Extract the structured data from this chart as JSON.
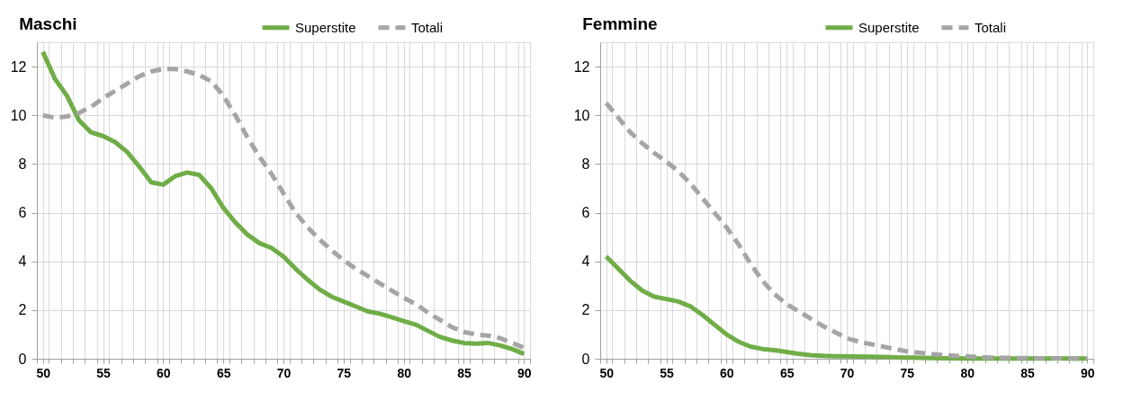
{
  "chart_data": [
    {
      "type": "line",
      "title": "Maschi",
      "legend": "top right",
      "grid": true,
      "x": [
        50,
        51,
        52,
        53,
        54,
        55,
        56,
        57,
        58,
        59,
        60,
        61,
        62,
        63,
        64,
        65,
        66,
        67,
        68,
        69,
        70,
        71,
        72,
        73,
        74,
        75,
        76,
        77,
        78,
        79,
        80,
        81,
        82,
        83,
        84,
        85,
        86,
        87,
        88,
        89,
        90
      ],
      "xlim": [
        49.5,
        90.5
      ],
      "xticks": [
        50,
        55,
        60,
        65,
        70,
        75,
        80,
        85,
        90,
        {
          "value": 49.5,
          "label": null
        },
        {
          "value": 50.5,
          "label": null
        },
        {
          "value": 51.5,
          "label": null
        },
        {
          "value": 52.5,
          "label": null
        },
        {
          "value": 53.5,
          "label": null
        },
        {
          "value": 54.5,
          "label": null
        },
        {
          "value": 55.5,
          "label": null
        },
        {
          "value": 56.5,
          "label": null
        },
        {
          "value": 57.5,
          "label": null
        },
        {
          "value": 58.5,
          "label": null
        },
        {
          "value": 59.5,
          "label": null
        },
        {
          "value": 60.5,
          "label": null
        },
        {
          "value": 61.5,
          "label": null
        },
        {
          "value": 62.5,
          "label": null
        },
        {
          "value": 63.5,
          "label": null
        },
        {
          "value": 64.5,
          "label": null
        },
        {
          "value": 65.5,
          "label": null
        },
        {
          "value": 66.5,
          "label": null
        },
        {
          "value": 67.5,
          "label": null
        },
        {
          "value": 68.5,
          "label": null
        },
        {
          "value": 69.5,
          "label": null
        },
        {
          "value": 70.5,
          "label": null
        },
        {
          "value": 71.5,
          "label": null
        },
        {
          "value": 72.5,
          "label": null
        },
        {
          "value": 73.5,
          "label": null
        },
        {
          "value": 74.5,
          "label": null
        },
        {
          "value": 75.5,
          "label": null
        },
        {
          "value": 76.5,
          "label": null
        },
        {
          "value": 77.5,
          "label": null
        },
        {
          "value": 78.5,
          "label": null
        },
        {
          "value": 79.5,
          "label": null
        },
        {
          "value": 80.5,
          "label": null
        },
        {
          "value": 81.5,
          "label": null
        },
        {
          "value": 82.5,
          "label": null
        },
        {
          "value": 83.5,
          "label": null
        },
        {
          "value": 84.5,
          "label": null
        },
        {
          "value": 85.5,
          "label": null
        },
        {
          "value": 86.5,
          "label": null
        },
        {
          "value": 87.5,
          "label": null
        },
        {
          "value": 88.5,
          "label": null
        },
        {
          "value": 89.5,
          "label": null
        },
        {
          "value": 90.5,
          "label": null
        }
      ],
      "ylim": [
        0,
        13
      ],
      "yticks": [
        0,
        2,
        4,
        6,
        8,
        10,
        12
      ],
      "series": [
        {
          "name": "Superstite",
          "color": "#70ad47",
          "line_style": "solid",
          "values": [
            12.6,
            11.5,
            10.8,
            9.8,
            9.3,
            9.15,
            8.9,
            8.5,
            7.9,
            7.25,
            7.15,
            7.5,
            7.65,
            7.55,
            7.0,
            6.2,
            5.6,
            5.1,
            4.75,
            4.55,
            4.2,
            3.7,
            3.25,
            2.85,
            2.55,
            2.35,
            2.15,
            1.95,
            1.85,
            1.7,
            1.55,
            1.4,
            1.15,
            0.9,
            0.75,
            0.65,
            0.62,
            0.65,
            0.55,
            0.4,
            0.2
          ]
        },
        {
          "name": "Totali",
          "color": "#a5a5a5",
          "line_style": "dashed",
          "values": [
            10.0,
            9.9,
            9.95,
            10.1,
            10.35,
            10.7,
            11.0,
            11.3,
            11.6,
            11.8,
            11.9,
            11.9,
            11.8,
            11.65,
            11.4,
            10.8,
            10.0,
            9.1,
            8.3,
            7.6,
            6.8,
            6.0,
            5.4,
            4.9,
            4.45,
            4.05,
            3.7,
            3.4,
            3.1,
            2.8,
            2.5,
            2.25,
            1.9,
            1.6,
            1.3,
            1.1,
            1.0,
            0.95,
            0.85,
            0.65,
            0.45
          ]
        }
      ]
    },
    {
      "type": "line",
      "title": "Femmine",
      "legend": "top right",
      "grid": true,
      "x": [
        50,
        51,
        52,
        53,
        54,
        55,
        56,
        57,
        58,
        59,
        60,
        61,
        62,
        63,
        64,
        65,
        66,
        67,
        68,
        69,
        70,
        71,
        72,
        73,
        74,
        75,
        76,
        77,
        78,
        79,
        80,
        81,
        82,
        83,
        84,
        85,
        86,
        87,
        88,
        89,
        90
      ],
      "xlim": [
        49.5,
        90.5
      ],
      "xticks": [
        50,
        55,
        60,
        65,
        70,
        75,
        80,
        85,
        90,
        {
          "value": 49.5,
          "label": null
        },
        {
          "value": 50.5,
          "label": null
        },
        {
          "value": 51.5,
          "label": null
        },
        {
          "value": 52.5,
          "label": null
        },
        {
          "value": 53.5,
          "label": null
        },
        {
          "value": 54.5,
          "label": null
        },
        {
          "value": 55.5,
          "label": null
        },
        {
          "value": 56.5,
          "label": null
        },
        {
          "value": 57.5,
          "label": null
        },
        {
          "value": 58.5,
          "label": null
        },
        {
          "value": 59.5,
          "label": null
        },
        {
          "value": 60.5,
          "label": null
        },
        {
          "value": 61.5,
          "label": null
        },
        {
          "value": 62.5,
          "label": null
        },
        {
          "value": 63.5,
          "label": null
        },
        {
          "value": 64.5,
          "label": null
        },
        {
          "value": 65.5,
          "label": null
        },
        {
          "value": 66.5,
          "label": null
        },
        {
          "value": 67.5,
          "label": null
        },
        {
          "value": 68.5,
          "label": null
        },
        {
          "value": 69.5,
          "label": null
        },
        {
          "value": 70.5,
          "label": null
        },
        {
          "value": 71.5,
          "label": null
        },
        {
          "value": 72.5,
          "label": null
        },
        {
          "value": 73.5,
          "label": null
        },
        {
          "value": 74.5,
          "label": null
        },
        {
          "value": 75.5,
          "label": null
        },
        {
          "value": 76.5,
          "label": null
        },
        {
          "value": 77.5,
          "label": null
        },
        {
          "value": 78.5,
          "label": null
        },
        {
          "value": 79.5,
          "label": null
        },
        {
          "value": 80.5,
          "label": null
        },
        {
          "value": 81.5,
          "label": null
        },
        {
          "value": 82.5,
          "label": null
        },
        {
          "value": 83.5,
          "label": null
        },
        {
          "value": 84.5,
          "label": null
        },
        {
          "value": 85.5,
          "label": null
        },
        {
          "value": 86.5,
          "label": null
        },
        {
          "value": 87.5,
          "label": null
        },
        {
          "value": 88.5,
          "label": null
        },
        {
          "value": 89.5,
          "label": null
        },
        {
          "value": 90.5,
          "label": null
        }
      ],
      "ylim": [
        0,
        13
      ],
      "yticks": [
        0,
        2,
        4,
        6,
        8,
        10,
        12
      ],
      "series": [
        {
          "name": "Superstite",
          "color": "#70ad47",
          "line_style": "solid",
          "values": [
            4.2,
            3.7,
            3.2,
            2.8,
            2.55,
            2.45,
            2.35,
            2.15,
            1.8,
            1.4,
            1.0,
            0.7,
            0.5,
            0.4,
            0.35,
            0.28,
            0.2,
            0.15,
            0.12,
            0.1,
            0.1,
            0.09,
            0.08,
            0.07,
            0.06,
            0.05,
            0.04,
            0.03,
            0.02,
            0.02,
            0.01,
            0.01,
            0.01,
            0.01,
            0.01,
            0.01,
            0.01,
            0.01,
            0.01,
            0.01,
            0.01
          ]
        },
        {
          "name": "Totali",
          "color": "#a5a5a5",
          "line_style": "dashed",
          "values": [
            10.5,
            9.9,
            9.3,
            8.85,
            8.45,
            8.1,
            7.7,
            7.2,
            6.6,
            6.0,
            5.4,
            4.7,
            3.9,
            3.2,
            2.65,
            2.25,
            1.95,
            1.65,
            1.35,
            1.1,
            0.85,
            0.7,
            0.6,
            0.5,
            0.4,
            0.3,
            0.25,
            0.2,
            0.15,
            0.12,
            0.1,
            0.07,
            0.05,
            0.04,
            0.03,
            0.03,
            0.02,
            0.02,
            0.02,
            0.01,
            0.01
          ]
        }
      ]
    }
  ]
}
